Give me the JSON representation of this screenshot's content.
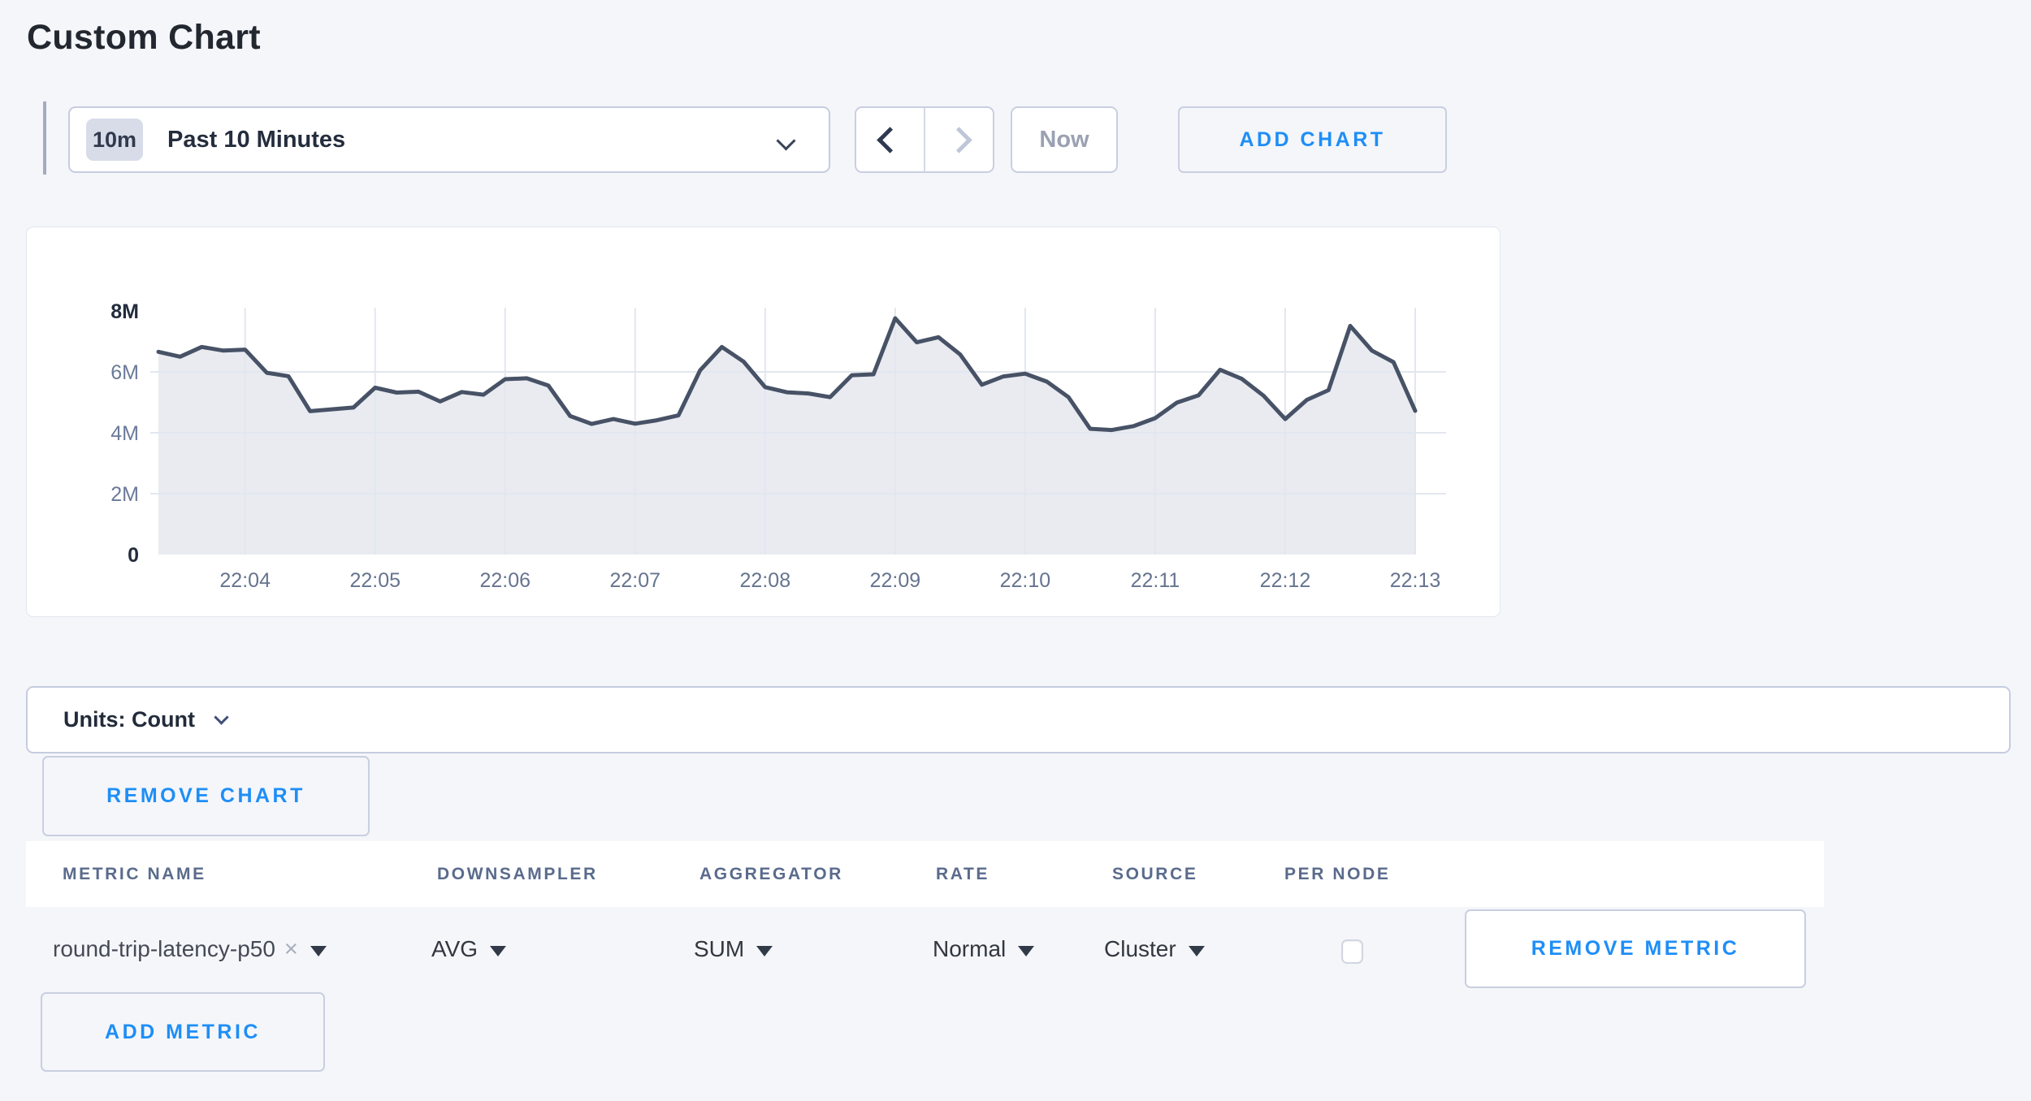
{
  "page": {
    "title": "Custom Chart"
  },
  "toolbar": {
    "range_badge": "10m",
    "range_label": "Past 10 Minutes",
    "now_label": "Now",
    "add_chart_label": "ADD CHART"
  },
  "chart_data": {
    "type": "area",
    "title": "",
    "xlabel": "",
    "ylabel": "",
    "value_unit": "count, millions",
    "ylim_millions": [
      0,
      8
    ],
    "y_ticks": [
      {
        "label": "0",
        "value": 0,
        "bold": true,
        "grid": false
      },
      {
        "label": "2M",
        "value": 2,
        "bold": false,
        "grid": true
      },
      {
        "label": "4M",
        "value": 4,
        "bold": false,
        "grid": true
      },
      {
        "label": "6M",
        "value": 6,
        "bold": false,
        "grid": true
      },
      {
        "label": "8M",
        "value": 8,
        "bold": true,
        "grid": false
      }
    ],
    "x_tick_labels": [
      "22:04",
      "22:05",
      "22:06",
      "22:07",
      "22:08",
      "22:09",
      "22:10",
      "22:11",
      "22:12",
      "22:13"
    ],
    "x_first_tick_index": 4,
    "x_tick_step": 6,
    "interval_seconds": 10,
    "grid": true,
    "legend": "none",
    "values_millions": [
      6.66,
      6.5,
      6.82,
      6.7,
      6.73,
      5.97,
      5.86,
      4.71,
      4.77,
      4.83,
      5.48,
      5.32,
      5.35,
      5.03,
      5.34,
      5.25,
      5.76,
      5.79,
      5.55,
      4.55,
      4.29,
      4.45,
      4.3,
      4.41,
      4.57,
      6.05,
      6.82,
      6.34,
      5.5,
      5.33,
      5.29,
      5.17,
      5.89,
      5.92,
      7.76,
      6.97,
      7.14,
      6.57,
      5.58,
      5.85,
      5.94,
      5.68,
      5.17,
      4.13,
      4.09,
      4.22,
      4.48,
      4.99,
      5.23,
      6.07,
      5.77,
      5.22,
      4.45,
      5.08,
      5.4,
      7.51,
      6.7,
      6.32,
      4.72
    ],
    "colors": {
      "line": "#475266",
      "fill": "#e9ebf1",
      "grid": "#e2e7ef",
      "tick": "#66748f",
      "tick_bold": "#232c3d"
    }
  },
  "units_bar": {
    "label": "Units: Count"
  },
  "chart_controls": {
    "remove_chart_label": "REMOVE CHART"
  },
  "metric_table": {
    "headers": [
      "METRIC NAME",
      "DOWNSAMPLER",
      "AGGREGATOR",
      "RATE",
      "SOURCE",
      "PER NODE"
    ],
    "rows": [
      {
        "metric_name": "round-trip-latency-p50",
        "downsampler": "AVG",
        "aggregator": "SUM",
        "rate": "Normal",
        "source": "Cluster",
        "per_node_checked": false,
        "remove_label": "REMOVE METRIC"
      }
    ],
    "add_metric_label": "ADD METRIC"
  },
  "icons": {
    "clear": "×"
  },
  "colors": {
    "accent": "#1e8ef7",
    "background": "#f4f6fa"
  }
}
